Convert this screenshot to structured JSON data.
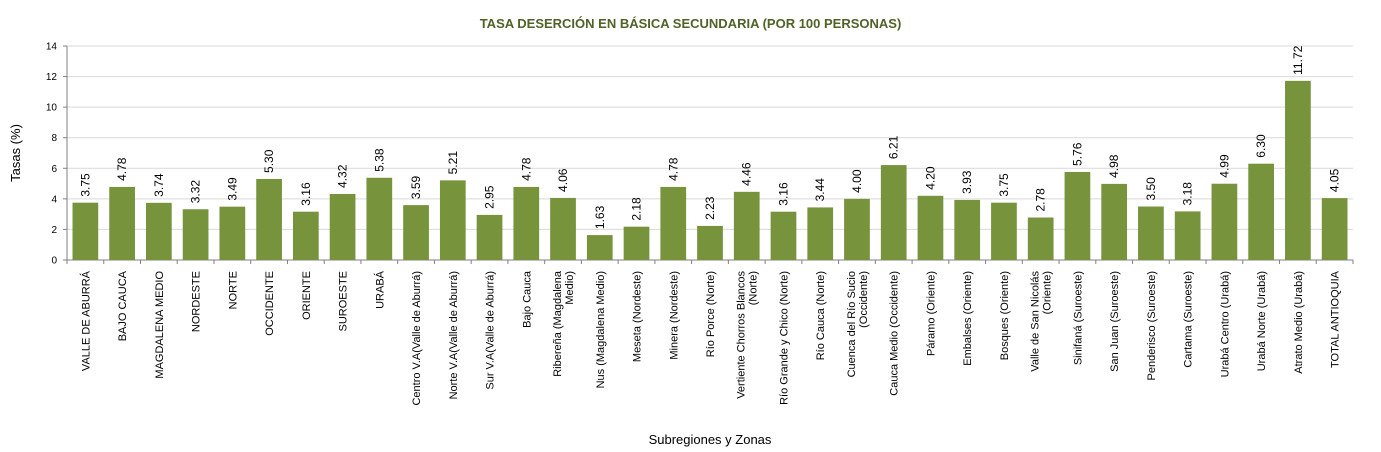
{
  "chart_data": {
    "type": "bar",
    "title": "TASA DESERCIÓN EN BÁSICA SECUNDARIA (POR 100 PERSONAS)",
    "xlabel": "Subregiones y Zonas",
    "ylabel": "Tasas (%)",
    "ylim": [
      0,
      14
    ],
    "yticks": [
      0,
      2,
      4,
      6,
      8,
      10,
      12,
      14
    ],
    "grid": true,
    "legend": "none",
    "bar_color": "#77933c",
    "title_color": "#4f6228",
    "categories": [
      [
        "VALLE DE ABURRÁ"
      ],
      [
        "BAJO CAUCA"
      ],
      [
        "MAGDALENA MEDIO"
      ],
      [
        "NORDESTE"
      ],
      [
        "NORTE"
      ],
      [
        "OCCIDENTE"
      ],
      [
        "ORIENTE"
      ],
      [
        "SUROESTE"
      ],
      [
        "URABÁ"
      ],
      [
        "Centro V.A(Valle de Aburrá)"
      ],
      [
        "Norte V.A(Valle de Aburrá)"
      ],
      [
        "Sur  V.A(Valle de Aburrá)"
      ],
      [
        "Bajo Cauca"
      ],
      [
        "Ribereña  (Magdalena",
        "Medio)"
      ],
      [
        "Nus  (Magdalena Medio)"
      ],
      [
        "Meseta  (Nordeste)"
      ],
      [
        "Minera  (Nordeste)"
      ],
      [
        "Río Porce   (Norte)"
      ],
      [
        "Vertiente Chorros Blancos",
        "(Norte)"
      ],
      [
        "Río Grande y Chico  (Norte)"
      ],
      [
        "Río Cauca  (Norte)"
      ],
      [
        "Cuenca del Río Sucio",
        "(Occidente)"
      ],
      [
        "Cauca Medio  (Occidente)"
      ],
      [
        "Páramo  (Oriente)"
      ],
      [
        "Embalses (Oriente)"
      ],
      [
        "Bosques  (Oriente)"
      ],
      [
        "Valle de San Nicolás",
        "(Oriente)"
      ],
      [
        "Sinifaná (Suroeste)"
      ],
      [
        "San Juan  (Suroeste)"
      ],
      [
        "Penderisco  (Suroeste)"
      ],
      [
        "Cartama  (Suroeste)"
      ],
      [
        "Urabá Centro  (Urabá)"
      ],
      [
        "Urabá Norte  (Urabá)"
      ],
      [
        "Atrato Medio  (Urabá)"
      ],
      [
        "TOTAL ANTIOQUIA"
      ]
    ],
    "values": [
      3.75,
      4.78,
      3.74,
      3.32,
      3.49,
      5.3,
      3.16,
      4.32,
      5.38,
      3.59,
      5.21,
      2.95,
      4.78,
      4.06,
      1.63,
      2.18,
      4.78,
      2.23,
      4.46,
      3.16,
      3.44,
      4.0,
      6.21,
      4.2,
      3.93,
      3.75,
      2.78,
      5.76,
      4.98,
      3.5,
      3.18,
      4.99,
      6.3,
      11.72,
      4.05
    ],
    "value_labels": [
      "3.75",
      "4.78",
      "3.74",
      "3.32",
      "3.49",
      "5.30",
      "3.16",
      "4.32",
      "5.38",
      "3.59",
      "5.21",
      "2.95",
      "4.78",
      "4.06",
      "1.63",
      "2.18",
      "4.78",
      "2.23",
      "4.46",
      "3.16",
      "3.44",
      "4.00",
      "6.21",
      "4.20",
      "3.93",
      "3.75",
      "2.78",
      "5.76",
      "4.98",
      "3.50",
      "3.18",
      "4.99",
      "6.30",
      "11.72",
      "4.05"
    ]
  }
}
